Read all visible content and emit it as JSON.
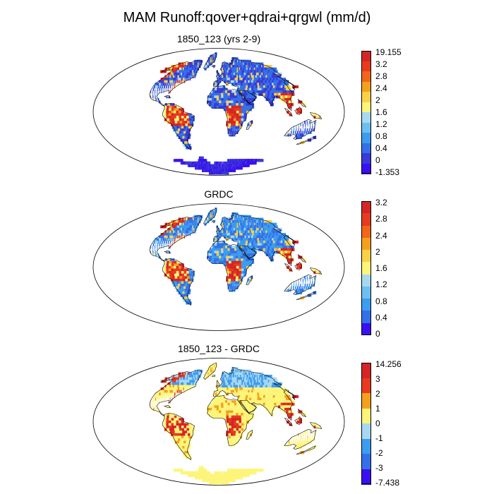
{
  "title": "MAM Runoff:qover+qdrai+qrgwl (mm/d)",
  "colors": {
    "ocean": "#ffffff",
    "coast": "#000000",
    "landLow": "#3a58e0"
  },
  "panels": [
    {
      "id": "model",
      "title": "1850_123 (yrs 2-9)",
      "colorbar": {
        "labels": [
          "19.155",
          "3.2",
          "2.8",
          "2.4",
          "2",
          "1.6",
          "1.2",
          "0.8",
          "0.4",
          "0",
          "-1.353"
        ],
        "colors": [
          "#d42626",
          "#e83a1e",
          "#f0661a",
          "#f5a01c",
          "#fbd148",
          "#fdf57a",
          "#a8d8f0",
          "#6cc0f0",
          "#3c9cf0",
          "#3470e8",
          "#3a3ad8",
          "#3a10f0"
        ]
      },
      "style": "model"
    },
    {
      "id": "obs",
      "title": "GRDC",
      "colorbar": {
        "labels": [
          "3.2",
          "2.8",
          "2.4",
          "2",
          "1.6",
          "1.2",
          "0.8",
          "0.4",
          "0"
        ],
        "colors": [
          "#d42626",
          "#e83a1e",
          "#f0661a",
          "#f5a01c",
          "#fbd148",
          "#fdf57a",
          "#a8d8f0",
          "#6cc0f0",
          "#3c9cf0",
          "#3470e8",
          "#3a10f0"
        ]
      },
      "style": "obs"
    },
    {
      "id": "diff",
      "title": "1850_123 - GRDC",
      "colorbar": {
        "labels": [
          "14.256",
          "3",
          "2",
          "1",
          "0",
          "-1",
          "-2",
          "-3",
          "-7.438"
        ],
        "colors": [
          "#d42626",
          "#e83a1e",
          "#f5a01c",
          "#fdf57a",
          "#a8d8f0",
          "#3c9cf0",
          "#3470e8",
          "#3a10f0"
        ]
      },
      "style": "diff"
    }
  ]
}
